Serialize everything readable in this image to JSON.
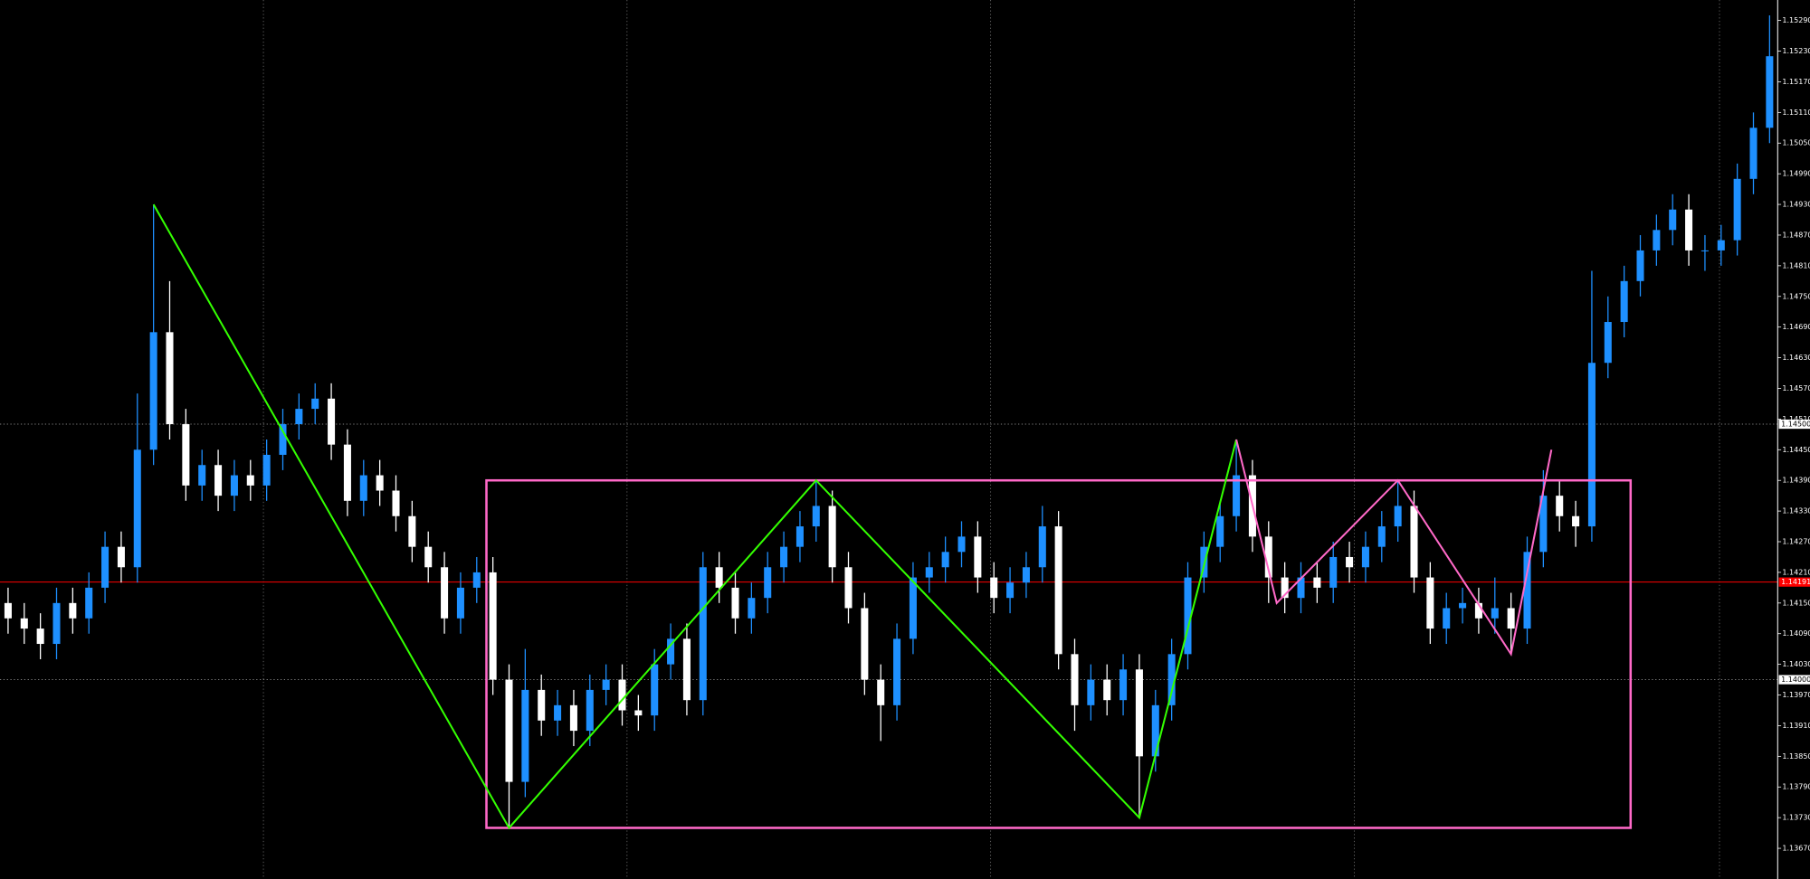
{
  "chart_data": {
    "type": "candlestick",
    "up_color": "#1e90ff",
    "down_color": "#ffffff",
    "background": "#000000",
    "xlim": [
      -0.5,
      109.5
    ],
    "ylim": [
      1.1361,
      1.1533
    ],
    "yticks": [
      {
        "value": 1.1367,
        "label": "1.13670"
      },
      {
        "value": 1.1373,
        "label": "1.13730"
      },
      {
        "value": 1.1379,
        "label": "1.13790"
      },
      {
        "value": 1.1385,
        "label": "1.13850"
      },
      {
        "value": 1.1391,
        "label": "1.13910"
      },
      {
        "value": 1.1397,
        "label": "1.13970"
      },
      {
        "value": 1.1403,
        "label": "1.14030"
      },
      {
        "value": 1.1409,
        "label": "1.14090"
      },
      {
        "value": 1.1415,
        "label": "1.14150"
      },
      {
        "value": 1.1421,
        "label": "1.14210"
      },
      {
        "value": 1.1427,
        "label": "1.14270"
      },
      {
        "value": 1.1433,
        "label": "1.14330"
      },
      {
        "value": 1.1439,
        "label": "1.14390"
      },
      {
        "value": 1.1445,
        "label": "1.14450"
      },
      {
        "value": 1.1451,
        "label": "1.14510"
      },
      {
        "value": 1.1457,
        "label": "1.14570"
      },
      {
        "value": 1.1463,
        "label": "1.14630"
      },
      {
        "value": 1.1469,
        "label": "1.14690"
      },
      {
        "value": 1.1475,
        "label": "1.14750"
      },
      {
        "value": 1.1481,
        "label": "1.14810"
      },
      {
        "value": 1.1487,
        "label": "1.14870"
      },
      {
        "value": 1.1493,
        "label": "1.14930"
      },
      {
        "value": 1.1499,
        "label": "1.14990"
      },
      {
        "value": 1.1505,
        "label": "1.15050"
      },
      {
        "value": 1.1511,
        "label": "1.15110"
      },
      {
        "value": 1.1517,
        "label": "1.15170"
      },
      {
        "value": 1.1523,
        "label": "1.15230"
      },
      {
        "value": 1.1529,
        "label": "1.15290"
      }
    ],
    "x_gridlines": [
      15.8,
      38.3,
      60.8,
      83.3,
      105.9
    ],
    "level_lines": [
      {
        "value": 1.145,
        "label": "1.14500"
      },
      {
        "value": 1.14,
        "label": "1.14000"
      }
    ],
    "current_price": {
      "value": 1.14191,
      "label": "1.14191",
      "color": "#ff0000"
    },
    "range_box": {
      "color": "#ff69c8",
      "x": [
        29.6,
        100.4
      ],
      "y": [
        1.1371,
        1.1439
      ]
    },
    "zigzags": [
      {
        "color": "#33ff00",
        "x": [
          9,
          31,
          50,
          70,
          76
        ],
        "y": [
          1.1493,
          1.1371,
          1.1439,
          1.1373,
          1.1447
        ]
      },
      {
        "color": "#ff69c8",
        "x": [
          76,
          78.5,
          86,
          93,
          95.5
        ],
        "y": [
          1.1447,
          1.1415,
          1.1439,
          1.1405,
          1.1445
        ]
      }
    ],
    "candles": [
      [
        1.1415,
        1.1418,
        1.1409,
        1.1412
      ],
      [
        1.1412,
        1.1415,
        1.1407,
        1.141
      ],
      [
        1.141,
        1.1413,
        1.1404,
        1.1407
      ],
      [
        1.1407,
        1.1418,
        1.1404,
        1.1415
      ],
      [
        1.1415,
        1.1418,
        1.1409,
        1.1412
      ],
      [
        1.1412,
        1.1421,
        1.1409,
        1.1418
      ],
      [
        1.1418,
        1.1429,
        1.1415,
        1.1426
      ],
      [
        1.1426,
        1.1429,
        1.1419,
        1.1422
      ],
      [
        1.1422,
        1.1456,
        1.1419,
        1.1445
      ],
      [
        1.1445,
        1.1493,
        1.1442,
        1.1468
      ],
      [
        1.1468,
        1.1478,
        1.1447,
        1.145
      ],
      [
        1.145,
        1.1453,
        1.1435,
        1.1438
      ],
      [
        1.1438,
        1.1445,
        1.1435,
        1.1442
      ],
      [
        1.1442,
        1.1445,
        1.1433,
        1.1436
      ],
      [
        1.1436,
        1.1443,
        1.1433,
        1.144
      ],
      [
        1.144,
        1.1443,
        1.1435,
        1.1438
      ],
      [
        1.1438,
        1.1447,
        1.1435,
        1.1444
      ],
      [
        1.1444,
        1.1453,
        1.1441,
        1.145
      ],
      [
        1.145,
        1.1456,
        1.1447,
        1.1453
      ],
      [
        1.1453,
        1.1458,
        1.145,
        1.1455
      ],
      [
        1.1455,
        1.1458,
        1.1443,
        1.1446
      ],
      [
        1.1446,
        1.1449,
        1.1432,
        1.1435
      ],
      [
        1.1435,
        1.1443,
        1.1432,
        1.144
      ],
      [
        1.144,
        1.1443,
        1.1434,
        1.1437
      ],
      [
        1.1437,
        1.144,
        1.1429,
        1.1432
      ],
      [
        1.1432,
        1.1435,
        1.1423,
        1.1426
      ],
      [
        1.1426,
        1.1429,
        1.1419,
        1.1422
      ],
      [
        1.1422,
        1.1425,
        1.1409,
        1.1412
      ],
      [
        1.1412,
        1.1421,
        1.1409,
        1.1418
      ],
      [
        1.1418,
        1.1424,
        1.1415,
        1.1421
      ],
      [
        1.1421,
        1.1424,
        1.1397,
        1.14
      ],
      [
        1.14,
        1.1403,
        1.1371,
        1.138
      ],
      [
        1.138,
        1.1406,
        1.1377,
        1.1398
      ],
      [
        1.1398,
        1.1401,
        1.1389,
        1.1392
      ],
      [
        1.1392,
        1.1398,
        1.1389,
        1.1395
      ],
      [
        1.1395,
        1.1398,
        1.1387,
        1.139
      ],
      [
        1.139,
        1.1401,
        1.1387,
        1.1398
      ],
      [
        1.1398,
        1.1403,
        1.1395,
        1.14
      ],
      [
        1.14,
        1.1403,
        1.1391,
        1.1394
      ],
      [
        1.1394,
        1.1397,
        1.139,
        1.1393
      ],
      [
        1.1393,
        1.1406,
        1.139,
        1.1403
      ],
      [
        1.1403,
        1.1411,
        1.14,
        1.1408
      ],
      [
        1.1408,
        1.1411,
        1.1393,
        1.1396
      ],
      [
        1.1396,
        1.1425,
        1.1393,
        1.1422
      ],
      [
        1.1422,
        1.1425,
        1.1415,
        1.1418
      ],
      [
        1.1418,
        1.1421,
        1.1409,
        1.1412
      ],
      [
        1.1412,
        1.1419,
        1.1409,
        1.1416
      ],
      [
        1.1416,
        1.1425,
        1.1413,
        1.1422
      ],
      [
        1.1422,
        1.1429,
        1.1419,
        1.1426
      ],
      [
        1.1426,
        1.1433,
        1.1423,
        1.143
      ],
      [
        1.143,
        1.1439,
        1.1427,
        1.1434
      ],
      [
        1.1434,
        1.1437,
        1.1419,
        1.1422
      ],
      [
        1.1422,
        1.1425,
        1.1411,
        1.1414
      ],
      [
        1.1414,
        1.1417,
        1.1397,
        1.14
      ],
      [
        1.14,
        1.1403,
        1.1388,
        1.1395
      ],
      [
        1.1395,
        1.1411,
        1.1392,
        1.1408
      ],
      [
        1.1408,
        1.1423,
        1.1405,
        1.142
      ],
      [
        1.142,
        1.1425,
        1.1417,
        1.1422
      ],
      [
        1.1422,
        1.1428,
        1.1419,
        1.1425
      ],
      [
        1.1425,
        1.1431,
        1.1422,
        1.1428
      ],
      [
        1.1428,
        1.1431,
        1.1417,
        1.142
      ],
      [
        1.142,
        1.1423,
        1.1413,
        1.1416
      ],
      [
        1.1416,
        1.1422,
        1.1413,
        1.1419
      ],
      [
        1.1419,
        1.1425,
        1.1416,
        1.1422
      ],
      [
        1.1422,
        1.1434,
        1.1419,
        1.143
      ],
      [
        1.143,
        1.1433,
        1.1402,
        1.1405
      ],
      [
        1.1405,
        1.1408,
        1.139,
        1.1395
      ],
      [
        1.1395,
        1.1403,
        1.1392,
        1.14
      ],
      [
        1.14,
        1.1403,
        1.1393,
        1.1396
      ],
      [
        1.1396,
        1.1405,
        1.1393,
        1.1402
      ],
      [
        1.1402,
        1.1405,
        1.1373,
        1.1385
      ],
      [
        1.1385,
        1.1398,
        1.1382,
        1.1395
      ],
      [
        1.1395,
        1.1408,
        1.1392,
        1.1405
      ],
      [
        1.1405,
        1.1423,
        1.1402,
        1.142
      ],
      [
        1.142,
        1.1429,
        1.1417,
        1.1426
      ],
      [
        1.1426,
        1.1435,
        1.1423,
        1.1432
      ],
      [
        1.1432,
        1.1447,
        1.1429,
        1.144
      ],
      [
        1.144,
        1.1443,
        1.1425,
        1.1428
      ],
      [
        1.1428,
        1.1431,
        1.1415,
        1.142
      ],
      [
        1.142,
        1.1423,
        1.1413,
        1.1416
      ],
      [
        1.1416,
        1.1423,
        1.1413,
        1.142
      ],
      [
        1.142,
        1.1423,
        1.1415,
        1.1418
      ],
      [
        1.1418,
        1.1427,
        1.1415,
        1.1424
      ],
      [
        1.1424,
        1.1427,
        1.1419,
        1.1422
      ],
      [
        1.1422,
        1.1429,
        1.1419,
        1.1426
      ],
      [
        1.1426,
        1.1433,
        1.1423,
        1.143
      ],
      [
        1.143,
        1.1439,
        1.1427,
        1.1434
      ],
      [
        1.1434,
        1.1437,
        1.1417,
        1.142
      ],
      [
        1.142,
        1.1423,
        1.1407,
        1.141
      ],
      [
        1.141,
        1.1417,
        1.1407,
        1.1414
      ],
      [
        1.1414,
        1.1418,
        1.1411,
        1.1415
      ],
      [
        1.1415,
        1.1418,
        1.1409,
        1.1412
      ],
      [
        1.1412,
        1.142,
        1.1409,
        1.1414
      ],
      [
        1.1414,
        1.1417,
        1.1405,
        1.141
      ],
      [
        1.141,
        1.1428,
        1.1407,
        1.1425
      ],
      [
        1.1425,
        1.1441,
        1.1422,
        1.1436
      ],
      [
        1.1436,
        1.1439,
        1.1429,
        1.1432
      ],
      [
        1.1432,
        1.1435,
        1.1426,
        1.143
      ],
      [
        1.143,
        1.148,
        1.1427,
        1.1462
      ],
      [
        1.1462,
        1.1475,
        1.1459,
        1.147
      ],
      [
        1.147,
        1.1481,
        1.1467,
        1.1478
      ],
      [
        1.1478,
        1.1487,
        1.1475,
        1.1484
      ],
      [
        1.1484,
        1.1491,
        1.1481,
        1.1488
      ],
      [
        1.1488,
        1.1495,
        1.1485,
        1.1492
      ],
      [
        1.1492,
        1.1495,
        1.1481,
        1.1484
      ],
      [
        1.1484,
        1.1487,
        1.148,
        1.1484
      ],
      [
        1.1484,
        1.1489,
        1.1481,
        1.1486
      ],
      [
        1.1486,
        1.1501,
        1.1483,
        1.1498
      ],
      [
        1.1498,
        1.1511,
        1.1495,
        1.1508
      ],
      [
        1.1508,
        1.153,
        1.1505,
        1.1522
      ]
    ]
  }
}
